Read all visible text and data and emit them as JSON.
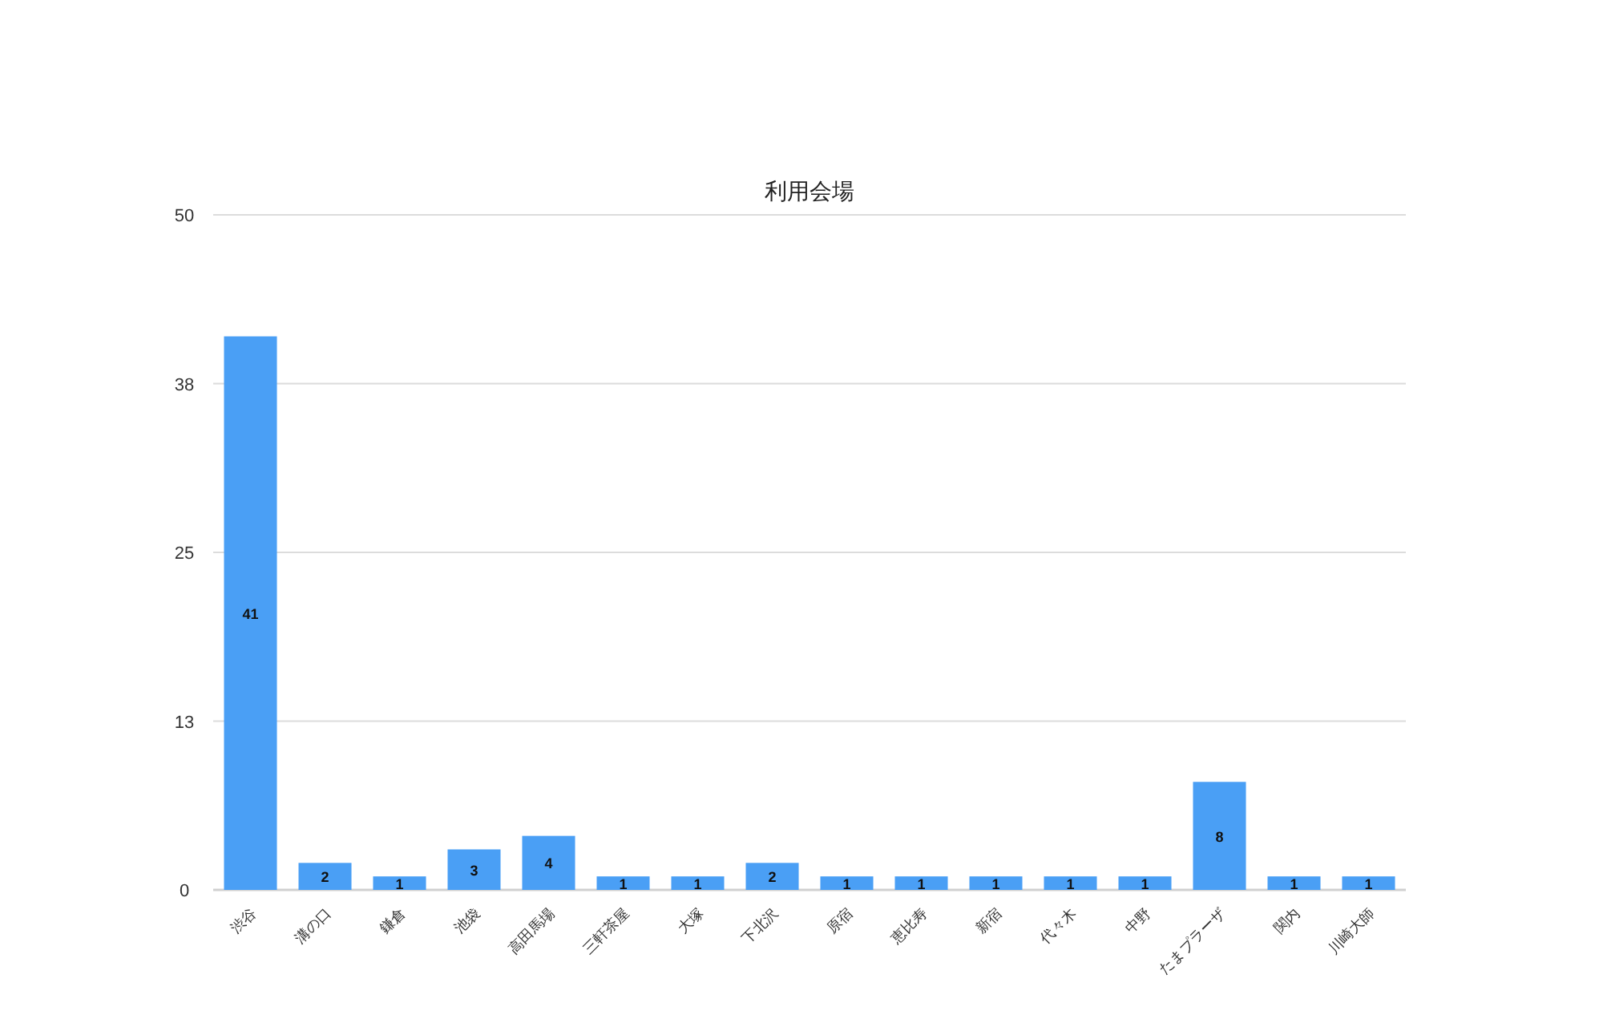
{
  "chart_data": {
    "type": "bar",
    "title": "利用会場",
    "categories": [
      "渋谷",
      "溝の口",
      "鎌倉",
      "池袋",
      "高田馬場",
      "三軒茶屋",
      "大塚",
      "下北沢",
      "原宿",
      "恵比寿",
      "新宿",
      "代々木",
      "中野",
      "たまプラーザ",
      "関内",
      "川崎大師"
    ],
    "values": [
      41,
      2,
      1,
      3,
      4,
      1,
      1,
      2,
      1,
      1,
      1,
      1,
      1,
      8,
      1,
      1
    ],
    "color": "#4a9ff5",
    "ylim": [
      0,
      50
    ],
    "yticks": [
      0,
      {
        "value": 12.5,
        "label": "13"
      },
      25,
      {
        "value": 37.5,
        "label": "38"
      },
      50
    ],
    "grid": "y",
    "data_labels": true
  }
}
